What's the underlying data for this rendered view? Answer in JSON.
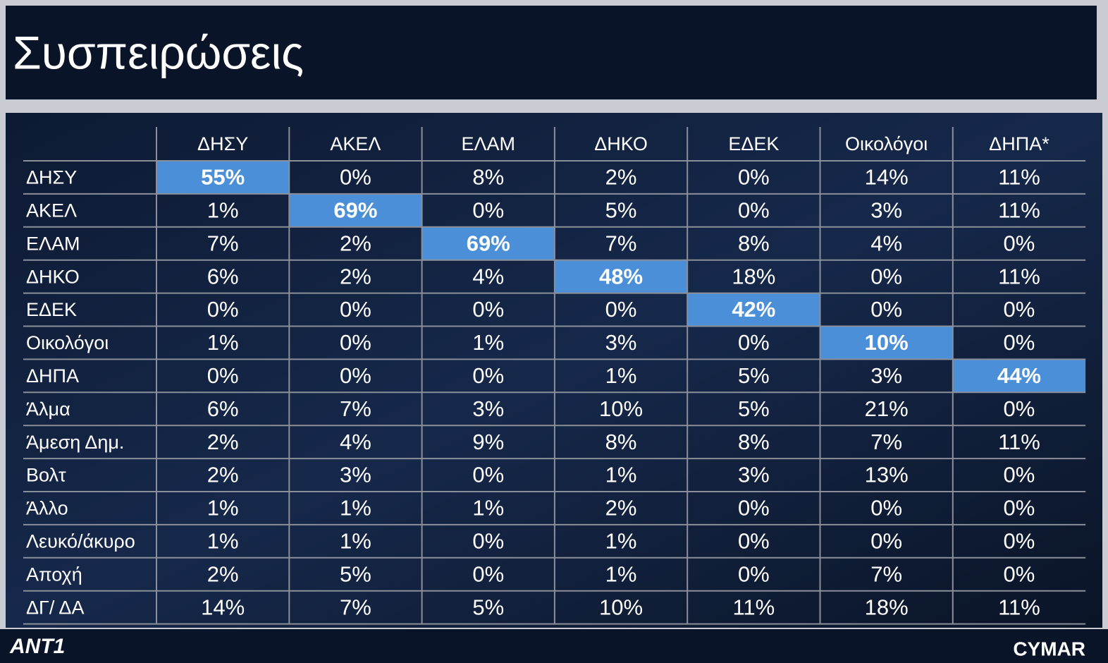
{
  "header": {
    "title": "Συσπειρώσεις"
  },
  "table": {
    "columns": [
      "ΔΗΣΥ",
      "ΑΚΕΛ",
      "ΕΛΑΜ",
      "ΔΗΚΟ",
      "ΕΔΕΚ",
      "Οικολόγοι",
      "ΔΗΠΑ*"
    ],
    "rows": [
      [
        "ΔΗΣΥ",
        "55%",
        "0%",
        "8%",
        "2%",
        "0%",
        "14%",
        "11%"
      ],
      [
        "ΑΚΕΛ",
        "1%",
        "69%",
        "0%",
        "5%",
        "0%",
        "3%",
        "11%"
      ],
      [
        "ΕΛΑΜ",
        "7%",
        "2%",
        "69%",
        "7%",
        "8%",
        "4%",
        "0%"
      ],
      [
        "ΔΗΚΟ",
        "6%",
        "2%",
        "4%",
        "48%",
        "18%",
        "0%",
        "11%"
      ],
      [
        "ΕΔΕΚ",
        "0%",
        "0%",
        "0%",
        "0%",
        "42%",
        "0%",
        "0%"
      ],
      [
        "Οικολόγοι",
        "1%",
        "0%",
        "1%",
        "3%",
        "0%",
        "10%",
        "0%"
      ],
      [
        "ΔΗΠΑ",
        "0%",
        "0%",
        "0%",
        "1%",
        "5%",
        "3%",
        "44%"
      ],
      [
        "Άλμα",
        "6%",
        "7%",
        "3%",
        "10%",
        "5%",
        "21%",
        "0%"
      ],
      [
        "Άμεση Δημ.",
        "2%",
        "4%",
        "9%",
        "8%",
        "8%",
        "7%",
        "11%"
      ],
      [
        "Βολτ",
        "2%",
        "3%",
        "0%",
        "1%",
        "3%",
        "13%",
        "0%"
      ],
      [
        "Άλλο",
        "1%",
        "1%",
        "1%",
        "2%",
        "0%",
        "0%",
        "0%"
      ],
      [
        "Λευκό/άκυρο",
        "1%",
        "1%",
        "0%",
        "1%",
        "0%",
        "0%",
        "0%"
      ],
      [
        "Αποχή",
        "2%",
        "5%",
        "0%",
        "1%",
        "0%",
        "7%",
        "0%"
      ],
      [
        "ΔΓ/ ΔΑ",
        "14%",
        "7%",
        "5%",
        "10%",
        "11%",
        "18%",
        "11%"
      ]
    ],
    "highlight_color": "#4a8fd8"
  },
  "footer": {
    "left_logo": "ANT1",
    "right_logo": "CYMAR"
  }
}
